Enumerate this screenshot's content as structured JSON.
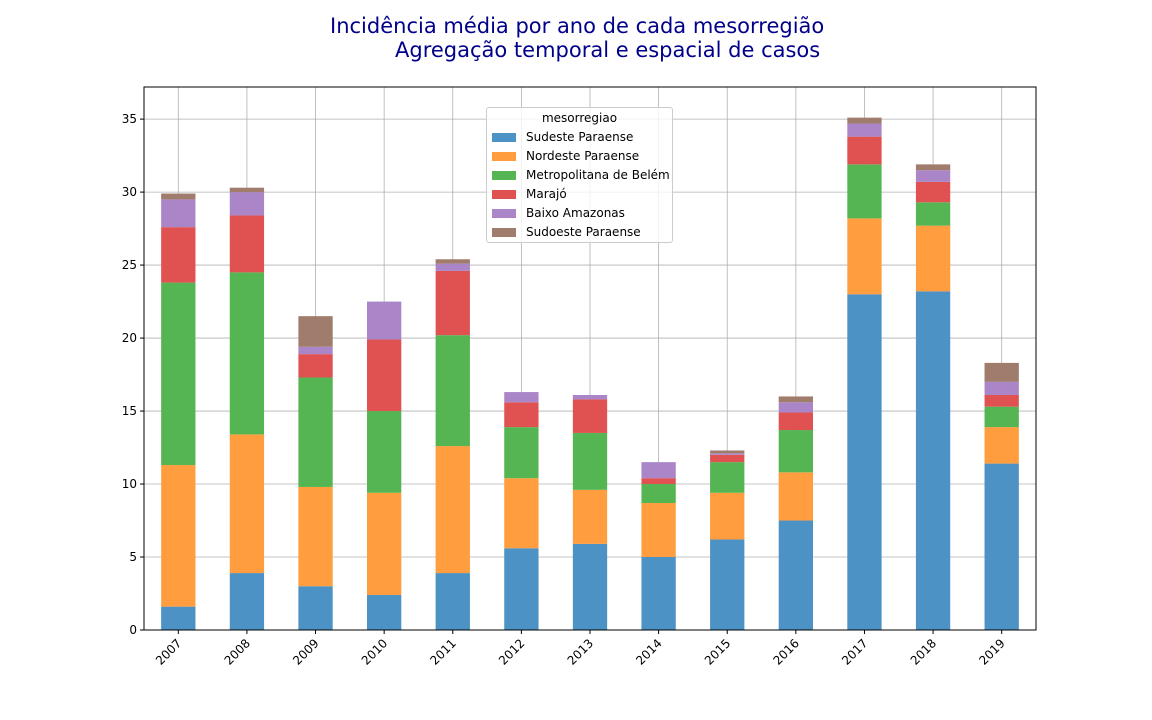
{
  "chart_data": {
    "type": "bar",
    "stacked": true,
    "title_line1": "Incidência média por ano de cada mesorregião",
    "title_line2": "Agregação temporal e espacial de casos",
    "title_color": "#00008b",
    "xlabel": "",
    "ylabel": "",
    "ylim": [
      0,
      37.2
    ],
    "yticks": [
      0,
      5,
      10,
      15,
      20,
      25,
      30,
      35
    ],
    "grid": true,
    "legend_placement": "upper-center",
    "legend_title": "mesorregiao",
    "categories": [
      "2007",
      "2008",
      "2009",
      "2010",
      "2011",
      "2012",
      "2013",
      "2014",
      "2015",
      "2016",
      "2017",
      "2018",
      "2019"
    ],
    "series": [
      {
        "name": "Sudeste Paraense",
        "color": "#4d92c5",
        "values": [
          1.6,
          3.9,
          3.0,
          2.4,
          3.9,
          5.6,
          5.9,
          5.0,
          6.2,
          7.5,
          23.0,
          23.2,
          11.4
        ]
      },
      {
        "name": "Nordeste Paraense",
        "color": "#ff9d3f",
        "values": [
          9.7,
          9.5,
          6.8,
          7.0,
          8.7,
          4.8,
          3.7,
          3.7,
          3.2,
          3.3,
          5.2,
          4.5,
          2.5
        ]
      },
      {
        "name": "Metropolitana de Belém",
        "color": "#55b553",
        "values": [
          12.5,
          11.1,
          7.5,
          5.6,
          7.6,
          3.5,
          3.9,
          1.3,
          2.1,
          2.9,
          3.7,
          1.6,
          1.4
        ]
      },
      {
        "name": "Marajó",
        "color": "#e05252",
        "values": [
          3.8,
          3.9,
          1.6,
          4.9,
          4.4,
          1.7,
          2.3,
          0.4,
          0.5,
          1.2,
          1.9,
          1.4,
          0.8
        ]
      },
      {
        "name": "Baixo Amazonas",
        "color": "#aa86c8",
        "values": [
          1.9,
          1.6,
          0.5,
          2.6,
          0.5,
          0.7,
          0.3,
          1.1,
          0.1,
          0.7,
          0.9,
          0.8,
          0.9
        ]
      },
      {
        "name": "Sudoeste Paraense",
        "color": "#a07c6c",
        "values": [
          0.4,
          0.3,
          2.1,
          0.0,
          0.3,
          0.0,
          0.0,
          0.0,
          0.2,
          0.4,
          0.4,
          0.4,
          1.3
        ]
      }
    ]
  }
}
